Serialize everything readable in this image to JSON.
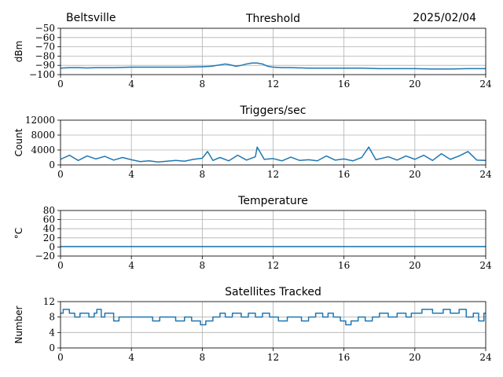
{
  "header": {
    "station": "Beltsville",
    "date": "2025/02/04"
  },
  "chart_data": [
    {
      "type": "line",
      "title": "Threshold",
      "xlabel": "",
      "ylabel": "dBm",
      "xlim": [
        0,
        24
      ],
      "ylim": [
        -100,
        -50
      ],
      "xticks": [
        0,
        4,
        8,
        12,
        16,
        20,
        24
      ],
      "yticks": [
        -100,
        -90,
        -80,
        -70,
        -60,
        -50
      ],
      "grid": true,
      "x": [
        0,
        0.5,
        1,
        1.5,
        2,
        3,
        4,
        5,
        6,
        7,
        8,
        8.5,
        9,
        9.3,
        9.6,
        9.9,
        10.2,
        10.5,
        10.8,
        11.1,
        11.4,
        11.7,
        12,
        12.5,
        13,
        14,
        15,
        16,
        17,
        18,
        19,
        20,
        21,
        22,
        23,
        24
      ],
      "y": [
        -93,
        -92.5,
        -92.5,
        -92.8,
        -92.5,
        -92.5,
        -92,
        -92,
        -92,
        -92,
        -91.5,
        -91,
        -89.5,
        -88.5,
        -89.5,
        -91,
        -90,
        -88.5,
        -87.5,
        -87.5,
        -88.5,
        -91,
        -92,
        -92.5,
        -92.5,
        -93,
        -93,
        -93,
        -93,
        -93.5,
        -93.5,
        -93.5,
        -94,
        -94,
        -93.5,
        -93.5
      ]
    },
    {
      "type": "line",
      "title": "Triggers/sec",
      "xlabel": "",
      "ylabel": "Count",
      "xlim": [
        0,
        24
      ],
      "ylim": [
        0,
        12000
      ],
      "xticks": [
        0,
        4,
        8,
        12,
        16,
        20,
        24
      ],
      "yticks": [
        0,
        4000,
        8000,
        12000
      ],
      "grid": true,
      "x": [
        0,
        0.5,
        1,
        1.5,
        2,
        2.5,
        3,
        3.5,
        4,
        4.5,
        5,
        5.5,
        6,
        6.5,
        7,
        7.5,
        8,
        8.3,
        8.6,
        9,
        9.5,
        10,
        10.5,
        11,
        11.1,
        11.5,
        12,
        12.5,
        13,
        13.5,
        14,
        14.5,
        15,
        15.5,
        16,
        16.5,
        17,
        17.4,
        17.8,
        18.5,
        19,
        19.5,
        20,
        20.5,
        21,
        21.5,
        22,
        22.5,
        23,
        23.5,
        24
      ],
      "y": [
        1500,
        2600,
        1200,
        2400,
        1600,
        2300,
        1300,
        2000,
        1400,
        900,
        1100,
        800,
        1000,
        1200,
        1000,
        1500,
        1800,
        3600,
        1200,
        2000,
        1100,
        2600,
        1300,
        2200,
        4800,
        1500,
        1700,
        1100,
        2100,
        1200,
        1400,
        1100,
        2400,
        1300,
        1600,
        1100,
        2000,
        4800,
        1400,
        2200,
        1300,
        2400,
        1500,
        2600,
        1200,
        3000,
        1500,
        2400,
        3600,
        1300,
        1200
      ]
    },
    {
      "type": "line",
      "title": "Temperature",
      "xlabel": "",
      "ylabel": "°C",
      "xlim": [
        0,
        24
      ],
      "ylim": [
        -20,
        80
      ],
      "xticks": [
        0,
        4,
        8,
        12,
        16,
        20,
        24
      ],
      "yticks": [
        -20,
        0,
        20,
        40,
        60,
        80
      ],
      "grid": true,
      "x": [
        0,
        24
      ],
      "y": [
        1,
        1
      ]
    },
    {
      "type": "line",
      "step": true,
      "title": "Satellites Tracked",
      "xlabel": "",
      "ylabel": "Number",
      "xlim": [
        0,
        24
      ],
      "ylim": [
        0,
        12
      ],
      "xticks": [
        0,
        4,
        8,
        12,
        16,
        20,
        24
      ],
      "yticks": [
        0,
        4,
        8,
        12
      ],
      "grid": true,
      "x": [
        0,
        0.15,
        0.5,
        0.8,
        1.1,
        1.6,
        1.9,
        2.05,
        2.3,
        2.5,
        3.0,
        3.3,
        3.8,
        4.2,
        4.8,
        5.2,
        5.6,
        5.9,
        6.2,
        6.5,
        7.0,
        7.4,
        7.9,
        8.2,
        8.6,
        9.0,
        9.3,
        9.7,
        10.2,
        10.6,
        11.0,
        11.4,
        11.8,
        12.3,
        12.8,
        13.2,
        13.6,
        14.0,
        14.4,
        14.8,
        15.1,
        15.4,
        15.8,
        16.1,
        16.4,
        16.8,
        17.2,
        17.6,
        18.0,
        18.5,
        19.0,
        19.5,
        19.8,
        20.4,
        21.0,
        21.6,
        22.0,
        22.5,
        22.9,
        23.3,
        23.6,
        23.9
      ],
      "y": [
        9,
        10,
        9,
        8,
        9,
        8,
        9,
        10,
        8,
        9,
        7,
        8,
        8,
        8,
        8,
        7,
        8,
        8,
        8,
        7,
        8,
        7,
        6,
        7,
        8,
        9,
        8,
        9,
        8,
        9,
        8,
        9,
        8,
        7,
        8,
        8,
        7,
        8,
        9,
        8,
        9,
        8,
        7,
        6,
        7,
        8,
        7,
        8,
        9,
        8,
        9,
        8,
        9,
        10,
        9,
        10,
        9,
        10,
        8,
        9,
        7,
        9
      ]
    }
  ]
}
